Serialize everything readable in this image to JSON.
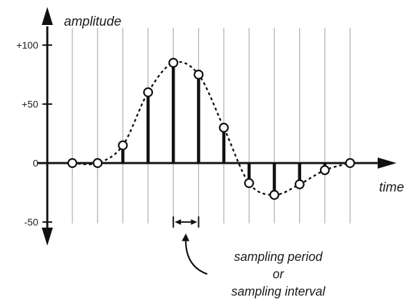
{
  "chart_data": {
    "type": "line",
    "title": "",
    "ylabel": "amplitude",
    "xlabel": "time",
    "yticks": [
      {
        "value": 100,
        "label": "+100"
      },
      {
        "value": 50,
        "label": "+50"
      },
      {
        "value": 0,
        "label": "0"
      },
      {
        "value": -50,
        "label": "-50"
      }
    ],
    "ylim": [
      -60,
      105
    ],
    "grid": "vertical sampling lines",
    "series": [
      {
        "style": "dashed curve with open circle markers and sample stems",
        "x": [
          0,
          1,
          2,
          3,
          4,
          5,
          6,
          7,
          8,
          9,
          10,
          11
        ],
        "values": [
          0,
          0,
          15,
          60,
          85,
          75,
          30,
          -17,
          -27,
          -18,
          -6,
          0
        ]
      }
    ],
    "annotation": {
      "text_lines": [
        "sampling period",
        "or",
        "sampling interval"
      ],
      "marks_interval": [
        4,
        5
      ]
    }
  }
}
